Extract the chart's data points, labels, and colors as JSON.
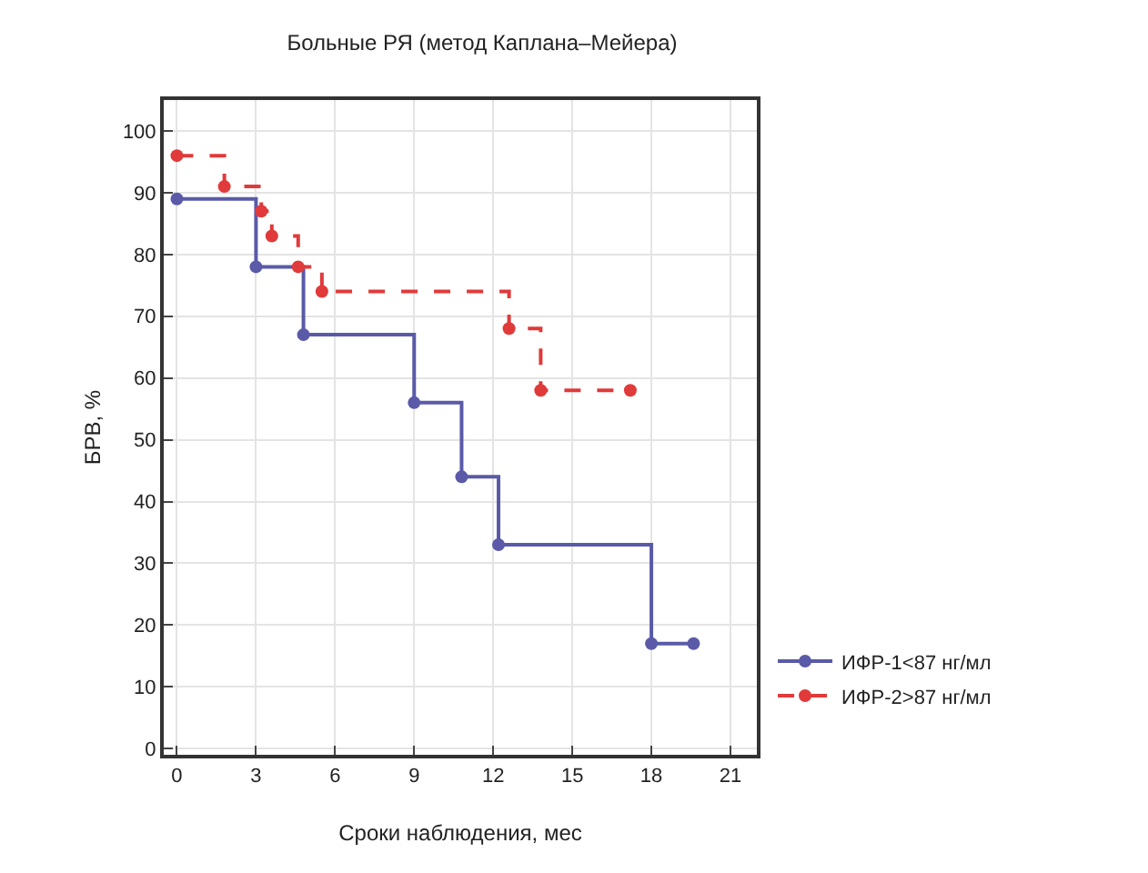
{
  "chart_data": {
    "type": "step",
    "title": "Больные РЯ (метод Каплана–Мейера)",
    "xlabel": "Сроки наблюдения, мес",
    "ylabel": "БРВ, %",
    "xlim": [
      -0.5,
      22
    ],
    "xticks": [
      0,
      3,
      6,
      9,
      12,
      15,
      18,
      21
    ],
    "ylim": [
      -1,
      105
    ],
    "yticks": [
      0,
      10,
      20,
      30,
      40,
      50,
      60,
      70,
      80,
      90,
      100
    ],
    "grid": true,
    "legend": "bottom right",
    "marker": "circle",
    "series": [
      {
        "name": "ИФР-1<87 нг/мл",
        "color": "#5a5aa8",
        "line_style": "solid",
        "x": [
          0,
          3,
          4.8,
          9,
          10.8,
          12.2,
          18,
          19.6
        ],
        "values": [
          89,
          78,
          67,
          56,
          44,
          33,
          17,
          17
        ]
      },
      {
        "name": "ИФР-2>87 нг/мл",
        "color": "#e03a3a",
        "line_style": "dashed",
        "x": [
          0,
          1.8,
          3.2,
          3.6,
          4.6,
          5.5,
          12.6,
          13.8,
          17.2
        ],
        "values": [
          96,
          91,
          87,
          83,
          78,
          74,
          68,
          58,
          58
        ]
      }
    ]
  }
}
